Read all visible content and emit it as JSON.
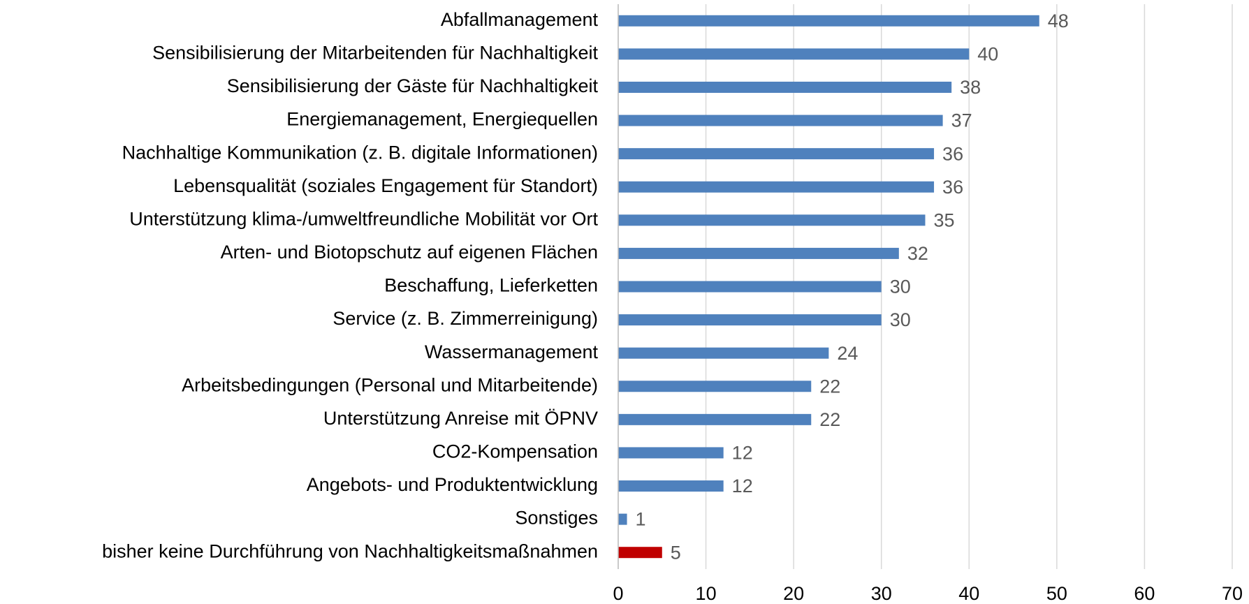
{
  "chart_data": {
    "type": "hbar",
    "categories": [
      "Abfallmanagement",
      "Sensibilisierung der Mitarbeitenden für Nachhaltigkeit",
      "Sensibilisierung der Gäste für Nachhaltigkeit",
      "Energiemanagement, Energiequellen",
      "Nachhaltige Kommunikation (z. B. digitale Informationen)",
      "Lebensqualität (soziales Engagement für Standort)",
      "Unterstützung klima-/umweltfreundliche Mobilität vor Ort",
      "Arten- und Biotopschutz auf eigenen Flächen",
      "Beschaffung, Lieferketten",
      "Service (z. B. Zimmerreinigung)",
      "Wassermanagement",
      "Arbeitsbedingungen (Personal und Mitarbeitende)",
      "Unterstützung Anreise mit ÖPNV",
      "CO2-Kompensation",
      "Angebots- und Produktentwicklung",
      "Sonstiges",
      "bisher keine Durchführung von Nachhaltigkeitsmaßnahmen"
    ],
    "values": [
      48,
      40,
      38,
      37,
      36,
      36,
      35,
      32,
      30,
      30,
      24,
      22,
      22,
      12,
      12,
      1,
      5
    ],
    "colors": [
      "#4f81bd",
      "#4f81bd",
      "#4f81bd",
      "#4f81bd",
      "#4f81bd",
      "#4f81bd",
      "#4f81bd",
      "#4f81bd",
      "#4f81bd",
      "#4f81bd",
      "#4f81bd",
      "#4f81bd",
      "#4f81bd",
      "#4f81bd",
      "#4f81bd",
      "#4f81bd",
      "#c00000"
    ],
    "xlim": [
      0,
      70
    ],
    "xticks": [
      0,
      10,
      20,
      30,
      40,
      50,
      60,
      70
    ],
    "grid": true
  }
}
